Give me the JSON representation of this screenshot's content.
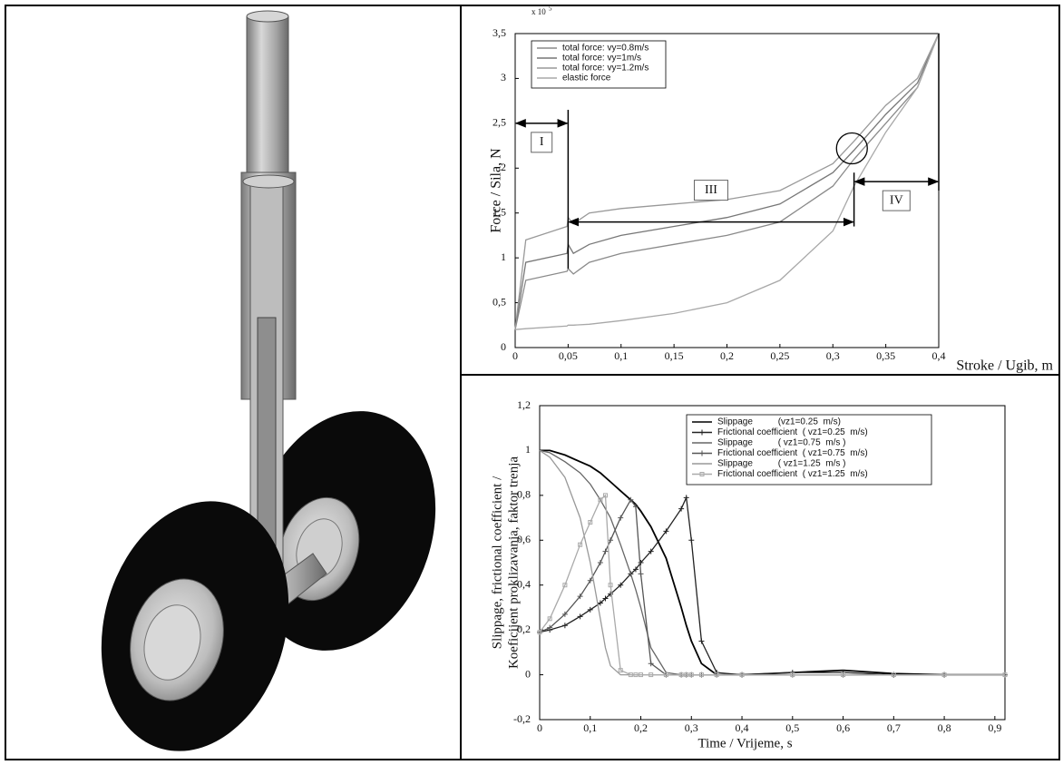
{
  "chart_data": [
    {
      "type": "line",
      "y_multiplier": {
        "base": "x 10",
        "exponent": "5"
      },
      "y_label": "Force / Sila, N",
      "x_label": "Stroke / Ugib, m",
      "x": [
        0,
        0.01,
        0.049,
        0.05,
        0.055,
        0.07,
        0.1,
        0.15,
        0.2,
        0.25,
        0.3,
        0.32,
        0.35,
        0.38,
        0.4
      ],
      "series": [
        {
          "name": "total force: vy=0.8m/s",
          "color": "#8a8a8a",
          "values": [
            0.2,
            0.75,
            0.85,
            0.88,
            0.82,
            0.95,
            1.05,
            1.15,
            1.25,
            1.4,
            1.8,
            2.1,
            2.5,
            2.9,
            3.5
          ]
        },
        {
          "name": "total force: vy=1m/s",
          "color": "#777777",
          "values": [
            0.2,
            0.95,
            1.05,
            1.15,
            1.05,
            1.15,
            1.25,
            1.35,
            1.45,
            1.6,
            1.95,
            2.2,
            2.6,
            2.95,
            3.5
          ]
        },
        {
          "name": "total force: vy=1.2m/s",
          "color": "#999999",
          "values": [
            0.2,
            1.2,
            1.35,
            1.45,
            1.38,
            1.5,
            1.55,
            1.6,
            1.65,
            1.75,
            2.05,
            2.3,
            2.7,
            3.0,
            3.5
          ]
        },
        {
          "name": "elastic force",
          "color": "#a8a8a8",
          "values": [
            0.2,
            0.21,
            0.24,
            0.25,
            0.25,
            0.26,
            0.3,
            0.38,
            0.5,
            0.75,
            1.3,
            1.8,
            2.4,
            2.9,
            3.5
          ]
        }
      ],
      "xlim": [
        0,
        0.4
      ],
      "xticks": [
        0,
        {
          "value": 0.05,
          "label": "0,05"
        },
        {
          "value": 0.1,
          "label": "0,1"
        },
        {
          "value": 0.15,
          "label": "0,15"
        },
        {
          "value": 0.2,
          "label": "0,2"
        },
        {
          "value": 0.25,
          "label": "0,25"
        },
        {
          "value": 0.3,
          "label": "0,3"
        },
        {
          "value": 0.35,
          "label": "0,35"
        },
        {
          "value": 0.4,
          "label": "0,4"
        }
      ],
      "ylim": [
        0,
        3.5
      ],
      "yticks": [
        0,
        {
          "value": 0.5,
          "label": "0,5"
        },
        1,
        {
          "value": 1.5,
          "label": "1,5"
        },
        2,
        {
          "value": 2.5,
          "label": "2,5"
        },
        3,
        {
          "value": 3.5,
          "label": "3,5"
        }
      ],
      "legend": "upper-left",
      "annotations": [
        {
          "text": "I",
          "x": [
            0,
            0.05
          ],
          "y": 2.5
        },
        {
          "text": "III",
          "x": [
            0.05,
            0.32
          ],
          "y": 1.4
        },
        {
          "text": "IV",
          "x": [
            0.32,
            0.4
          ],
          "y": 1.85
        }
      ],
      "vlines": [
        {
          "x": 0.05,
          "y": [
            0.88,
            2.65
          ]
        },
        {
          "x": 0.32,
          "y": [
            1.35,
            1.95
          ]
        },
        {
          "x": 0.4,
          "y": [
            1.75,
            3.5
          ]
        }
      ],
      "highlight": {
        "x": 0.318,
        "y": 2.22
      }
    },
    {
      "type": "line",
      "y_label": [
        "Slippage, frictional coefficient /",
        "Koeficijent proklizavanja, faktor trenja"
      ],
      "x_label": "Time / Vrijeme, s",
      "x": [
        0,
        0.02,
        0.05,
        0.08,
        0.1,
        0.12,
        0.13,
        0.14,
        0.16,
        0.18,
        0.19,
        0.2,
        0.22,
        0.25,
        0.28,
        0.29,
        0.3,
        0.32,
        0.35,
        0.4,
        0.5,
        0.6,
        0.7,
        0.8,
        0.92
      ],
      "series": [
        {
          "name": "Slippage          (vz1=0.25  m/s)",
          "color": "#000000",
          "marker": "none",
          "values": [
            1.0,
            1.0,
            0.98,
            0.95,
            0.93,
            0.9,
            0.88,
            0.86,
            0.82,
            0.78,
            0.76,
            0.73,
            0.66,
            0.52,
            0.3,
            0.22,
            0.15,
            0.05,
            0.0,
            0.0,
            0.01,
            0.02,
            0.005,
            0,
            0
          ]
        },
        {
          "name": "Frictional coefficient  ( vz1=0.25  m/s)",
          "color": "#222222",
          "marker": "plus",
          "values": [
            0.19,
            0.2,
            0.22,
            0.26,
            0.29,
            0.32,
            0.34,
            0.36,
            0.4,
            0.45,
            0.47,
            0.5,
            0.55,
            0.64,
            0.74,
            0.79,
            0.6,
            0.15,
            0.01,
            0,
            0.01,
            0.01,
            0,
            0,
            0
          ]
        },
        {
          "name": "Slippage          ( vz1=0.75  m/s )",
          "color": "#666666",
          "marker": "none",
          "values": [
            1.0,
            0.99,
            0.95,
            0.9,
            0.85,
            0.78,
            0.74,
            0.7,
            0.58,
            0.45,
            0.38,
            0.3,
            0.12,
            0.01,
            0,
            0,
            0,
            0,
            0,
            0,
            0,
            0,
            0,
            0,
            0
          ]
        },
        {
          "name": "Frictional coefficient  ( vz1=0.75  m/s)",
          "color": "#555555",
          "marker": "plus",
          "values": [
            0.19,
            0.21,
            0.27,
            0.35,
            0.42,
            0.5,
            0.55,
            0.6,
            0.7,
            0.78,
            0.75,
            0.45,
            0.05,
            0,
            0,
            0,
            0,
            0,
            0,
            0,
            0,
            0,
            0,
            0,
            0
          ]
        },
        {
          "name": "Slippage          ( vz1=1.25  m/s )",
          "color": "#999999",
          "marker": "none",
          "values": [
            1.0,
            0.97,
            0.88,
            0.7,
            0.5,
            0.25,
            0.12,
            0.04,
            0,
            0,
            0,
            0,
            0,
            0,
            0,
            0,
            0,
            0,
            0,
            0,
            0,
            0,
            0,
            0,
            0
          ]
        },
        {
          "name": "Frictional coefficient  ( vz1=1.25  m/s)",
          "color": "#aaaaaa",
          "marker": "square",
          "values": [
            0.19,
            0.25,
            0.4,
            0.58,
            0.68,
            0.78,
            0.8,
            0.4,
            0.02,
            0,
            0,
            0,
            0,
            0,
            0,
            0,
            0,
            0,
            0,
            0,
            0,
            0,
            0,
            0,
            0
          ]
        }
      ],
      "xlim": [
        0,
        0.92
      ],
      "xticks": [
        0,
        {
          "value": 0.1,
          "label": "0,1"
        },
        {
          "value": 0.2,
          "label": "0,2"
        },
        {
          "value": 0.3,
          "label": "0,3"
        },
        {
          "value": 0.4,
          "label": "0,4"
        },
        {
          "value": 0.5,
          "label": "0,5"
        },
        {
          "value": 0.6,
          "label": "0,6"
        },
        {
          "value": 0.7,
          "label": "0,7"
        },
        {
          "value": 0.8,
          "label": "0,8"
        },
        {
          "value": 0.9,
          "label": "0,9"
        }
      ],
      "ylim": [
        -0.2,
        1.2
      ],
      "yticks": [
        {
          "value": -0.2,
          "label": "-0,2"
        },
        0,
        {
          "value": 0.2,
          "label": "0,2"
        },
        {
          "value": 0.4,
          "label": "0,4"
        },
        {
          "value": 0.6,
          "label": "0,6"
        },
        {
          "value": 0.8,
          "label": "0,8"
        },
        1,
        {
          "value": 1.2,
          "label": "1,2"
        }
      ],
      "legend": "upper-center"
    }
  ]
}
